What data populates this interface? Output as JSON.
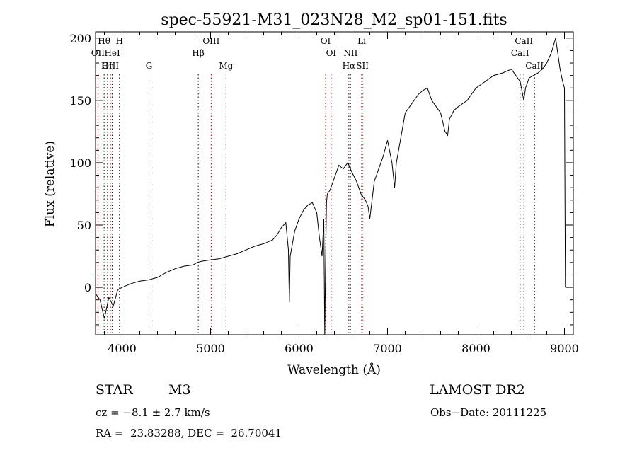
{
  "chart_data": {
    "type": "line",
    "title": "spec-55921-M31_023N28_M2_sp01-151.fits",
    "xlabel": "Wavelength (Å)",
    "ylabel": "Flux (relative)",
    "xlim": [
      3700,
      9100
    ],
    "ylim": [
      -38,
      205
    ],
    "x_ticks": [
      4000,
      5000,
      6000,
      7000,
      8000,
      9000
    ],
    "y_ticks": [
      0,
      50,
      100,
      150,
      200
    ],
    "series": [
      {
        "x": [
          3700,
          3750,
          3800,
          3850,
          3900,
          3950,
          4000,
          4100,
          4200,
          4300,
          4400,
          4500,
          4600,
          4700,
          4800,
          4850,
          4900,
          5000,
          5100,
          5200,
          5300,
          5400,
          5500,
          5600,
          5700,
          5750,
          5800,
          5850,
          5880,
          5890,
          5900,
          5950,
          6000,
          6050,
          6100,
          6150,
          6200,
          6230,
          6260,
          6280,
          6290,
          6300,
          6310,
          6320,
          6350,
          6400,
          6450,
          6500,
          6550,
          6600,
          6650,
          6700,
          6750,
          6780,
          6800,
          6850,
          6900,
          6950,
          7000,
          7050,
          7080,
          7100,
          7150,
          7200,
          7250,
          7300,
          7350,
          7400,
          7450,
          7500,
          7550,
          7600,
          7650,
          7680,
          7700,
          7750,
          7800,
          7900,
          8000,
          8100,
          8200,
          8300,
          8400,
          8450,
          8500,
          8540,
          8560,
          8600,
          8650,
          8700,
          8750,
          8800,
          8850,
          8880,
          8900,
          8950,
          8980,
          9000,
          9010
        ],
        "y": [
          -5,
          -10,
          -25,
          -8,
          -15,
          -2,
          0,
          3,
          5,
          6,
          8,
          12,
          15,
          17,
          18,
          20,
          21,
          22,
          23,
          25,
          27,
          30,
          33,
          35,
          38,
          42,
          48,
          52,
          30,
          -12,
          25,
          45,
          55,
          62,
          66,
          68,
          60,
          40,
          25,
          55,
          -38,
          20,
          68,
          75,
          78,
          88,
          98,
          95,
          100,
          92,
          85,
          75,
          70,
          65,
          55,
          85,
          95,
          105,
          118,
          100,
          80,
          100,
          120,
          140,
          145,
          150,
          155,
          158,
          160,
          150,
          145,
          140,
          125,
          122,
          135,
          142,
          145,
          150,
          160,
          165,
          170,
          172,
          175,
          170,
          165,
          150,
          160,
          168,
          170,
          172,
          175,
          180,
          188,
          195,
          200,
          175,
          165,
          160,
          0
        ]
      }
    ],
    "line_markers": [
      {
        "label": "Hθ",
        "x": 3797,
        "row": 1,
        "color": "#000000"
      },
      {
        "label": "H",
        "x": 3970,
        "row": 1,
        "color": "#000000"
      },
      {
        "label": "OII",
        "x": 3727,
        "row": 2,
        "color": "#cc0000"
      },
      {
        "label": "HeI",
        "x": 3889,
        "row": 2,
        "color": "#000000"
      },
      {
        "label": "OIII",
        "x": 3869,
        "row": 3,
        "color": "#cc0000"
      },
      {
        "label": "Hη",
        "x": 3835,
        "row": 3,
        "color": "#000000"
      },
      {
        "label": "G",
        "x": 4304,
        "row": 3,
        "color": "#000000"
      },
      {
        "label": "OIII",
        "x": 5007,
        "row": 1,
        "color": "#cc0000"
      },
      {
        "label": "Hβ",
        "x": 4861,
        "row": 2,
        "color": "#000000"
      },
      {
        "label": "Mg",
        "x": 5175,
        "row": 3,
        "color": "#000000"
      },
      {
        "label": "OI",
        "x": 6300,
        "row": 1,
        "color": "#cc0000"
      },
      {
        "label": "OI",
        "x": 6363,
        "row": 2,
        "color": "#cc0000"
      },
      {
        "label": "Li",
        "x": 6708,
        "row": 1,
        "color": "#000000"
      },
      {
        "label": "NII",
        "x": 6583,
        "row": 2,
        "color": "#cc0000"
      },
      {
        "label": "Hα",
        "x": 6563,
        "row": 3,
        "color": "#000000"
      },
      {
        "label": "SII",
        "x": 6717,
        "row": 3,
        "color": "#cc0000"
      },
      {
        "label": "CaII",
        "x": 8542,
        "row": 1,
        "color": "#000000"
      },
      {
        "label": "CaII",
        "x": 8498,
        "row": 2,
        "color": "#000000"
      },
      {
        "label": "CaII",
        "x": 8662,
        "row": 3,
        "color": "#000000"
      }
    ]
  },
  "info": {
    "object_class": "STAR",
    "subclass": "M3",
    "survey": "LAMOST DR2",
    "cz": "cz = −8.1 ± 2.7 km/s",
    "obs_date": "Obs−Date: 20111225",
    "coords": "RA =  23.83288, DEC =  26.70041"
  }
}
